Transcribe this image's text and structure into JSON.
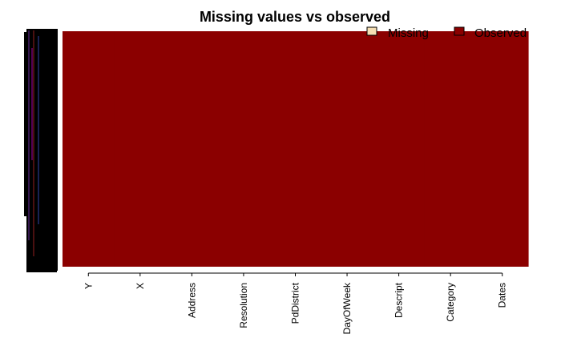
{
  "chart_data": {
    "type": "heatmap",
    "title": "Missing values vs observed",
    "xlabel": "",
    "ylabel": "",
    "columns": [
      "Y",
      "X",
      "Address",
      "Resolution",
      "PdDistrict",
      "DayOfWeek",
      "Descript",
      "Category",
      "Dates"
    ],
    "series": [
      {
        "name": "Missing",
        "color": "#f5deb3",
        "counts": [
          0,
          0,
          0,
          0,
          0,
          0,
          0,
          0,
          0
        ]
      },
      {
        "name": "Observed",
        "color": "#8b0000",
        "counts": [
          1,
          1,
          1,
          1,
          1,
          1,
          1,
          1,
          1
        ]
      }
    ],
    "missing_fraction": [
      0,
      0,
      0,
      0,
      0,
      0,
      0,
      0,
      0
    ],
    "legend_position": "top-right",
    "grid": false
  }
}
